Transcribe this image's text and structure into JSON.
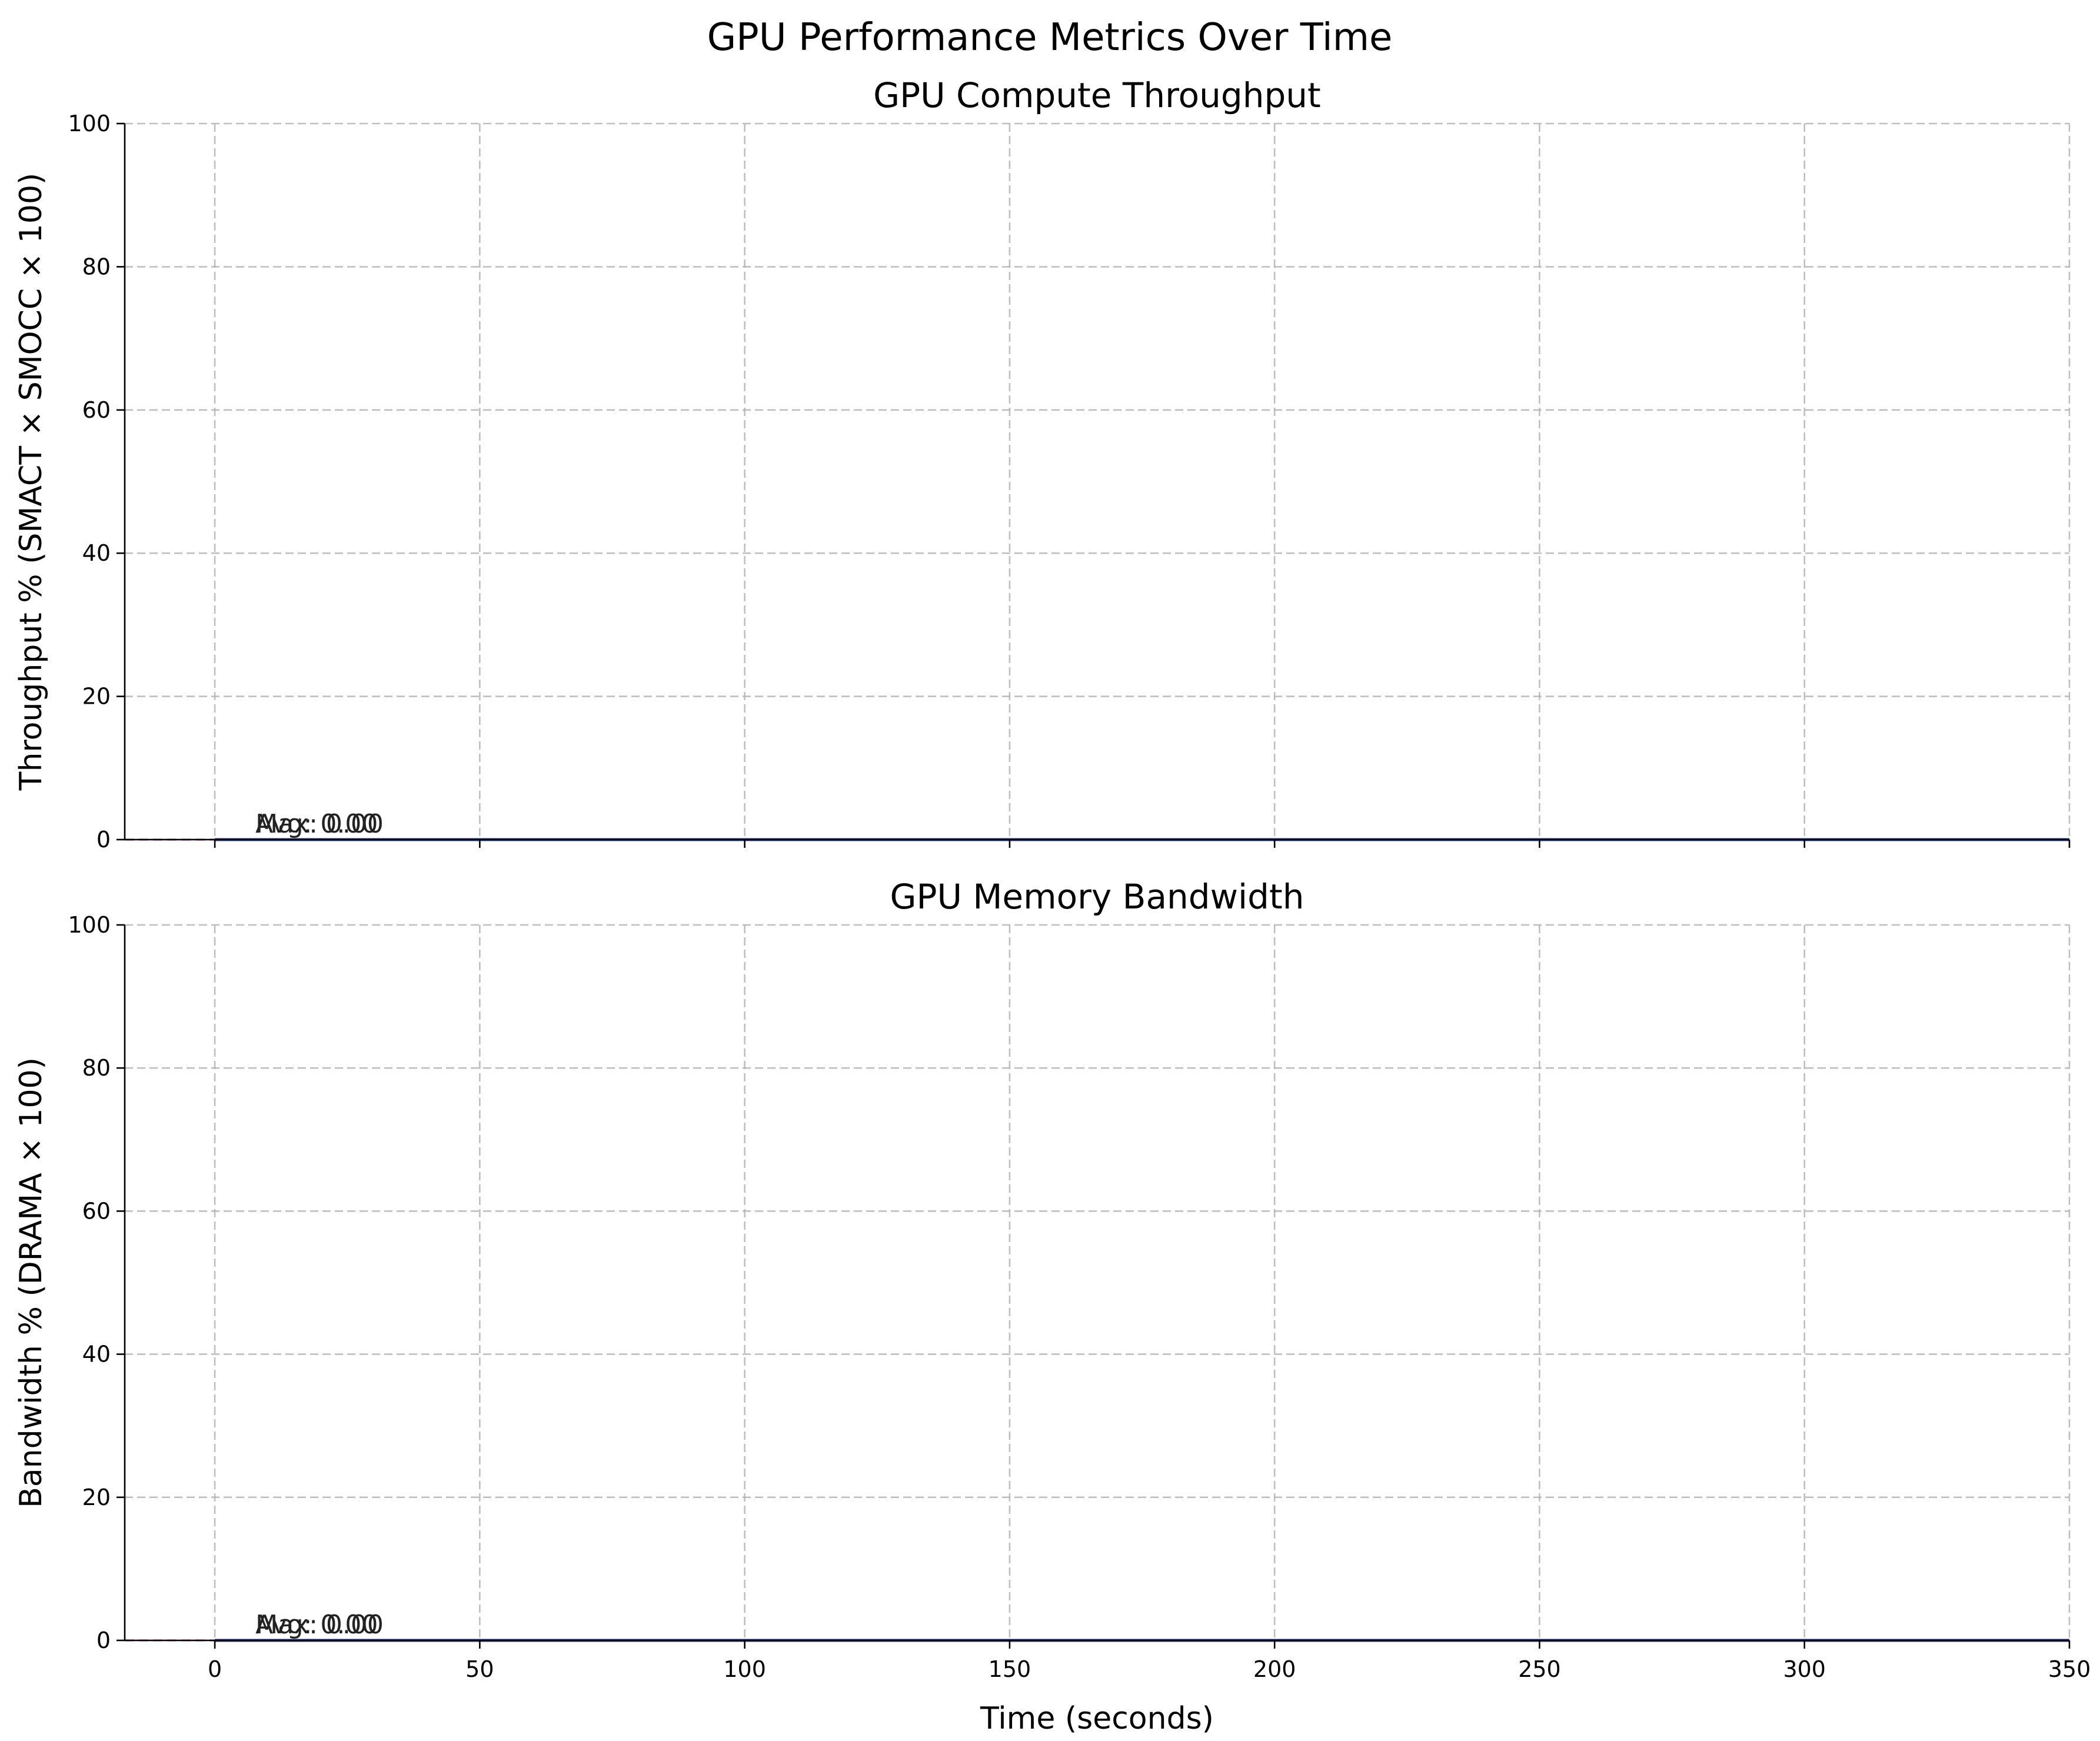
{
  "figure": {
    "suptitle": "GPU Performance Metrics Over Time"
  },
  "chart_data": [
    {
      "type": "line",
      "title": "GPU Compute Throughput",
      "xlabel": "",
      "ylabel": "Throughput % (SMACT × SMOCC × 100)",
      "xlim": [
        -17,
        350
      ],
      "ylim": [
        0,
        100
      ],
      "xticks": [
        0,
        50,
        100,
        150,
        200,
        250,
        300,
        350
      ],
      "yticks": [
        0,
        20,
        40,
        60,
        80,
        100
      ],
      "grid": true,
      "series": [
        {
          "color": "#1f3a93",
          "x": [
            0,
            350
          ],
          "y": [
            0,
            0
          ]
        }
      ],
      "reference_lines": [
        {
          "y": 0,
          "color": "#e377c2"
        }
      ],
      "annotations": [
        {
          "text": "Avg: 0.00",
          "x": 7,
          "y": 0
        },
        {
          "text": "Max: 0.00",
          "x": 7,
          "y": 0
        }
      ]
    },
    {
      "type": "line",
      "title": "GPU Memory Bandwidth",
      "xlabel": "Time (seconds)",
      "ylabel": "Bandwidth % (DRAMA × 100)",
      "xlim": [
        -17,
        350
      ],
      "ylim": [
        0,
        100
      ],
      "xticks": [
        0,
        50,
        100,
        150,
        200,
        250,
        300,
        350
      ],
      "yticks": [
        0,
        20,
        40,
        60,
        80,
        100
      ],
      "grid": true,
      "series": [
        {
          "color": "#1f3a93",
          "x": [
            0,
            350
          ],
          "y": [
            0,
            0
          ]
        }
      ],
      "reference_lines": [
        {
          "y": 0,
          "color": "#e377c2"
        }
      ],
      "annotations": [
        {
          "text": "Avg: 0.00",
          "x": 7,
          "y": 0
        },
        {
          "text": "Max: 0.00",
          "x": 7,
          "y": 0
        }
      ]
    }
  ]
}
